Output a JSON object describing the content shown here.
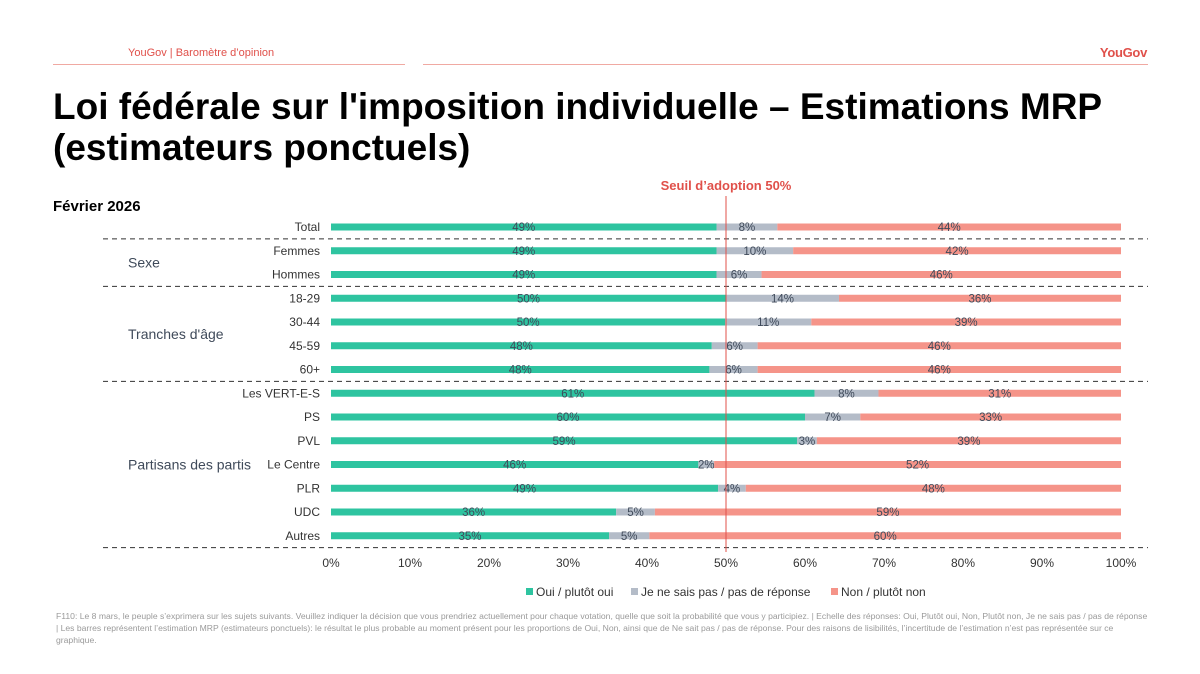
{
  "header": {
    "breadcrumb": "YouGov | Baromètre d’opinion",
    "logo_text": "YouGov"
  },
  "title": "Loi fédérale sur l'imposition individuelle – Estimations MRP (estimateurs ponctuels)",
  "subtitle": "Février 2026",
  "footnote": "F110: Le 8 mars, le peuple s’exprimera sur les sujets suivants. Veuillez indiquer la décision que vous prendriez actuellement pour chaque votation, quelle que soit la probabilité que vous y participiez. | Echelle des réponses: Oui, Plutôt oui, Non, Plutôt non, Je ne sais pas / pas de réponse | Les barres représentent l’estimation MRP (estimateurs ponctuels): le résultat le plus probable au moment présent pour les proportions de Oui, Non, ainsi que de Ne sait pas / pas de réponse. Pour des raisons de lisibilités, l’incertitude de l’estimation n’est pas représentée sur ce graphique.",
  "colors": {
    "oui": "#2ec4a0",
    "ne_sait_pas": "#b4bcc8",
    "non": "#f59489",
    "threshold": "#e0504a"
  },
  "chart_data": {
    "type": "bar",
    "orientation": "horizontal",
    "stacked": true,
    "threshold": {
      "value": 50,
      "label": "Seuil d’adoption 50%"
    },
    "xlim": [
      0,
      100
    ],
    "x_ticks": [
      "0%",
      "10%",
      "20%",
      "30%",
      "40%",
      "50%",
      "60%",
      "70%",
      "80%",
      "90%",
      "100%"
    ],
    "legend_position": "bottom",
    "groups": [
      {
        "label": "",
        "rows": [
          "Total"
        ]
      },
      {
        "label": "Sexe",
        "rows": [
          "Femmes",
          "Hommes"
        ]
      },
      {
        "label": "Tranches d'âge",
        "rows": [
          "18-29",
          "30-44",
          "45-59",
          "60+"
        ]
      },
      {
        "label": "Partisans des partis",
        "rows": [
          "Les VERT-E-S",
          "PS",
          "PVL",
          "Le Centre",
          "PLR",
          "UDC",
          "Autres"
        ]
      }
    ],
    "categories": [
      "Total",
      "Femmes",
      "Hommes",
      "18-29",
      "30-44",
      "45-59",
      "60+",
      "Les VERT-E-S",
      "PS",
      "PVL",
      "Le Centre",
      "PLR",
      "UDC",
      "Autres"
    ],
    "series": [
      {
        "name": "Oui / plutôt oui",
        "values": [
          49,
          49,
          49,
          50,
          50,
          48,
          48,
          61,
          60,
          59,
          46,
          49,
          36,
          35
        ]
      },
      {
        "name": "Je ne sais pas / pas de réponse",
        "values": [
          8,
          10,
          6,
          14,
          11,
          6,
          6,
          8,
          7,
          3,
          2,
          4,
          5,
          5
        ]
      },
      {
        "name": "Non / plutôt non",
        "values": [
          44,
          42,
          46,
          36,
          39,
          46,
          46,
          31,
          33,
          39,
          52,
          48,
          59,
          60
        ]
      }
    ],
    "bar_value_positions": [
      [
        48.8,
        7.7,
        43.5
      ],
      [
        48.8,
        9.7,
        41.5
      ],
      [
        48.8,
        5.7,
        45.5
      ],
      [
        50.0,
        14.3,
        35.7
      ],
      [
        49.9,
        10.9,
        39.2
      ],
      [
        48.2,
        5.8,
        46.0
      ],
      [
        47.9,
        6.1,
        46.0
      ],
      [
        61.2,
        8.1,
        30.7
      ],
      [
        60.0,
        7.0,
        33.0
      ],
      [
        59.0,
        2.5,
        38.5
      ],
      [
        46.5,
        2.0,
        51.5
      ],
      [
        49.0,
        3.5,
        47.5
      ],
      [
        36.1,
        4.9,
        59.0
      ],
      [
        35.2,
        5.1,
        59.7
      ]
    ]
  }
}
